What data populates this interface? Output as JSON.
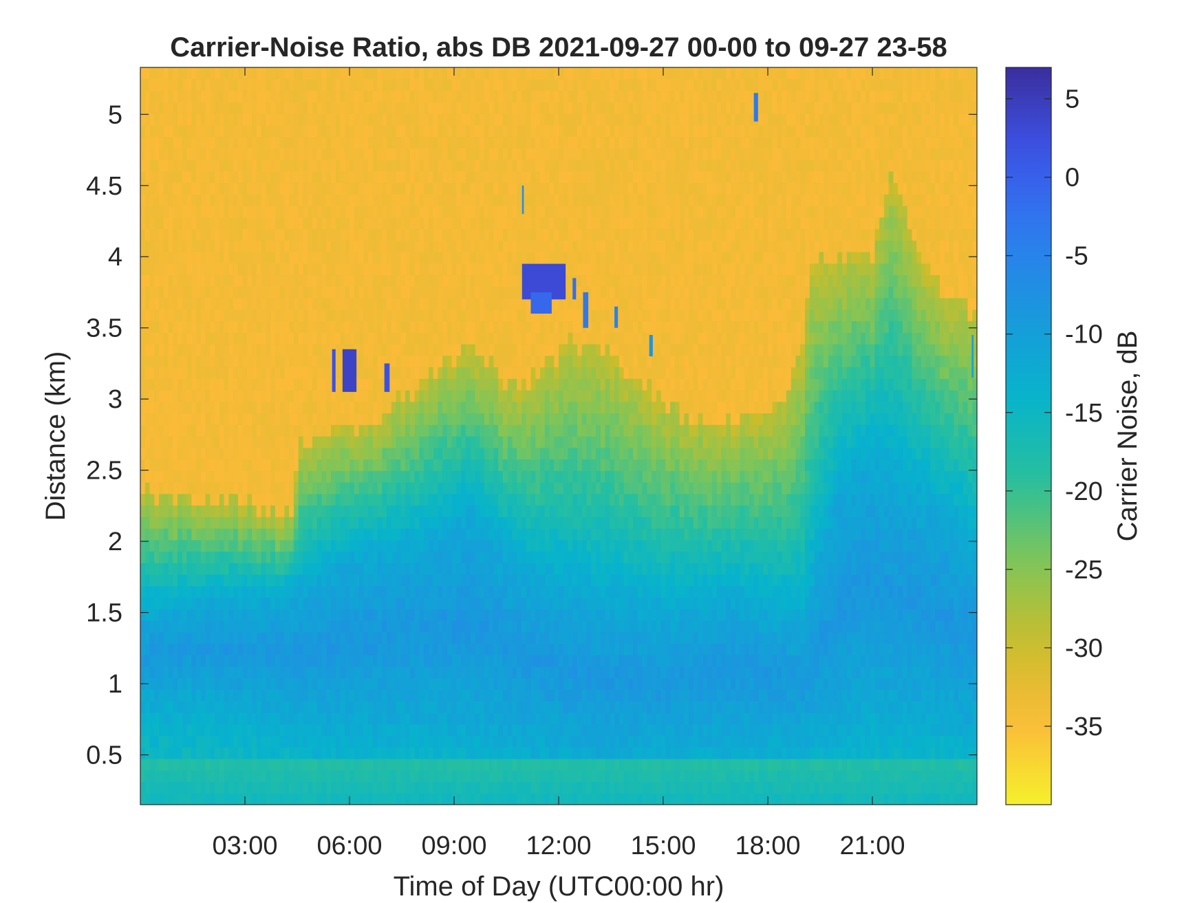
{
  "chart_data": {
    "type": "heatmap",
    "title": "Carrier-Noise Ratio, abs DB 2021-09-27 00-00 to 09-27 23-58",
    "xlabel": "Time of Day (UTC00:00 hr)",
    "ylabel": "Distance (km)",
    "colorbar_label": "Carrier Noise, dB",
    "xlim": [
      0,
      24
    ],
    "ylim": [
      0.15,
      5.33
    ],
    "clim": [
      -40,
      7
    ],
    "x_ticks": [
      3,
      6,
      9,
      12,
      15,
      18,
      21
    ],
    "x_tick_labels": [
      "03:00",
      "06:00",
      "09:00",
      "12:00",
      "15:00",
      "18:00",
      "21:00"
    ],
    "y_ticks": [
      0.5,
      1,
      1.5,
      2,
      2.5,
      3,
      3.5,
      4,
      4.5,
      5
    ],
    "y_tick_labels": [
      "0.5",
      "1",
      "1.5",
      "2",
      "2.5",
      "3",
      "3.5",
      "4",
      "4.5",
      "5"
    ],
    "cbar_ticks": [
      5,
      0,
      -5,
      -10,
      -15,
      -20,
      -25,
      -30,
      -35
    ],
    "cbar_tick_labels": [
      "5",
      "0",
      "-5",
      "-10",
      "-15",
      "-20",
      "-25",
      "-30",
      "-35"
    ],
    "colormap": "parula-reversed",
    "colormap_stops": [
      "#3b2e9e",
      "#3c53e6",
      "#2e7bf0",
      "#1a98dd",
      "#07b3cc",
      "#27bf9f",
      "#7dc55a",
      "#c9bd2c",
      "#fbbb39",
      "#f5f02c"
    ],
    "background_value": -34,
    "signal_top_km": [
      [
        0,
        2.4
      ],
      [
        0.5,
        2.3
      ],
      [
        1.5,
        2.3
      ],
      [
        2.5,
        2.3
      ],
      [
        3.3,
        2.25
      ],
      [
        4.3,
        2.2
      ],
      [
        4.5,
        2.6
      ],
      [
        4.8,
        2.75
      ],
      [
        5.5,
        2.75
      ],
      [
        6.5,
        2.8
      ],
      [
        7.5,
        3.0
      ],
      [
        8.5,
        3.2
      ],
      [
        9.5,
        3.4
      ],
      [
        10.5,
        3.1
      ],
      [
        11.5,
        3.2
      ],
      [
        12.5,
        3.4
      ],
      [
        13.5,
        3.3
      ],
      [
        14.5,
        3.1
      ],
      [
        15.5,
        2.9
      ],
      [
        16.5,
        2.8
      ],
      [
        17.5,
        2.9
      ],
      [
        18.5,
        3.0
      ],
      [
        19.0,
        3.4
      ],
      [
        19.2,
        3.9
      ],
      [
        20.0,
        4.0
      ],
      [
        21.0,
        4.0
      ],
      [
        21.5,
        4.6
      ],
      [
        22.5,
        3.9
      ],
      [
        23.2,
        3.7
      ],
      [
        24,
        3.6
      ]
    ],
    "blue_core": [
      [
        0,
        0.9,
        1.5
      ],
      [
        2,
        0.9,
        1.6
      ],
      [
        4,
        0.8,
        1.6
      ],
      [
        6,
        0.7,
        1.9
      ],
      [
        8,
        0.75,
        2.0
      ],
      [
        9.5,
        0.7,
        2.2
      ],
      [
        11,
        0.6,
        1.8
      ],
      [
        12,
        0.55,
        1.7
      ],
      [
        13,
        0.5,
        1.6
      ],
      [
        15,
        0.55,
        1.5
      ],
      [
        17,
        0.6,
        1.6
      ],
      [
        19,
        0.65,
        1.4
      ],
      [
        20,
        0.7,
        2.4
      ],
      [
        21,
        0.8,
        2.6
      ],
      [
        22.5,
        0.8,
        2.3
      ],
      [
        24,
        0.7,
        2.0
      ]
    ],
    "strong_echoes": [
      {
        "x0": 5.5,
        "x1": 5.6,
        "y0": 3.05,
        "y1": 3.35,
        "value": 2
      },
      {
        "x0": 5.8,
        "x1": 6.2,
        "y0": 3.05,
        "y1": 3.35,
        "value": 4
      },
      {
        "x0": 7.0,
        "x1": 7.15,
        "y0": 3.05,
        "y1": 3.25,
        "value": 2
      },
      {
        "x0": 10.95,
        "x1": 12.2,
        "y0": 3.7,
        "y1": 3.95,
        "value": 3
      },
      {
        "x0": 11.2,
        "x1": 11.8,
        "y0": 3.6,
        "y1": 3.75,
        "value": -1
      },
      {
        "x0": 12.4,
        "x1": 12.5,
        "y0": 3.7,
        "y1": 3.85,
        "value": -2
      },
      {
        "x0": 12.7,
        "x1": 12.85,
        "y0": 3.5,
        "y1": 3.75,
        "value": -3
      },
      {
        "x0": 13.6,
        "x1": 13.7,
        "y0": 3.5,
        "y1": 3.65,
        "value": -5
      },
      {
        "x0": 14.6,
        "x1": 14.7,
        "y0": 3.3,
        "y1": 3.45,
        "value": -8
      },
      {
        "x0": 10.95,
        "x1": 11.0,
        "y0": 4.3,
        "y1": 4.5,
        "value": -7
      },
      {
        "x0": 17.6,
        "x1": 17.72,
        "y0": 4.95,
        "y1": 5.15,
        "value": -3
      },
      {
        "x0": 23.85,
        "x1": 23.9,
        "y0": 3.15,
        "y1": 3.45,
        "value": -10
      }
    ]
  }
}
